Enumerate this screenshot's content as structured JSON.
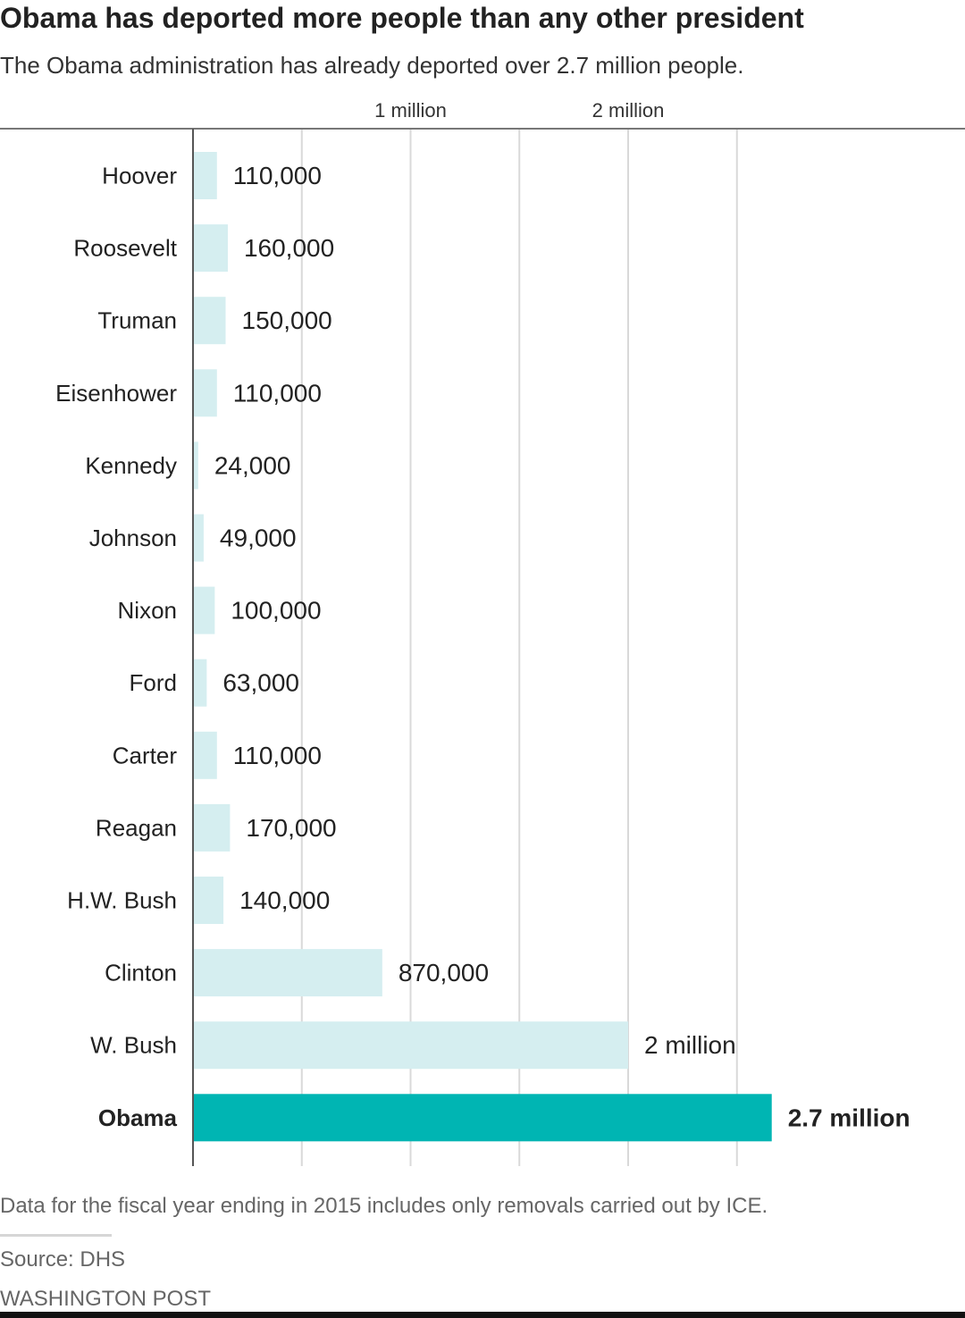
{
  "title": "Obama has deported more people than any other president",
  "subtitle": "The Obama administration has already deported over 2.7 million people.",
  "note": "Data for the fiscal year ending in 2015 includes only removals carried out by ICE.",
  "source": "Source: DHS",
  "brand": "WASHINGTON POST",
  "colors": {
    "bar": "#d5eef0",
    "highlight": "#00b5b3",
    "grid": "#d9d9d9",
    "axis": "#555555",
    "text": "#222222"
  },
  "chart_data": {
    "type": "bar",
    "orientation": "horizontal",
    "title": "Obama has deported more people than any other president",
    "subtitle": "The Obama administration has already deported over 2.7 million people.",
    "xlabel": "",
    "ylabel": "",
    "xlim": [
      0,
      3500000
    ],
    "grid": true,
    "x_ticks": [
      {
        "value": 500000,
        "label": ""
      },
      {
        "value": 1000000,
        "label": "1 million"
      },
      {
        "value": 1500000,
        "label": ""
      },
      {
        "value": 2000000,
        "label": "2 million"
      },
      {
        "value": 2500000,
        "label": ""
      }
    ],
    "categories": [
      "Hoover",
      "Roosevelt",
      "Truman",
      "Eisenhower",
      "Kennedy",
      "Johnson",
      "Nixon",
      "Ford",
      "Carter",
      "Reagan",
      "H.W. Bush",
      "Clinton",
      "W. Bush",
      "Obama"
    ],
    "values": [
      110000,
      160000,
      150000,
      110000,
      24000,
      49000,
      100000,
      63000,
      110000,
      170000,
      140000,
      870000,
      2000000,
      2660000
    ],
    "value_labels": [
      "110,000",
      "160,000",
      "150,000",
      "110,000",
      "24,000",
      "49,000",
      "100,000",
      "63,000",
      "110,000",
      "170,000",
      "140,000",
      "870,000",
      "2 million",
      "2.7 million"
    ],
    "highlight": "Obama"
  }
}
